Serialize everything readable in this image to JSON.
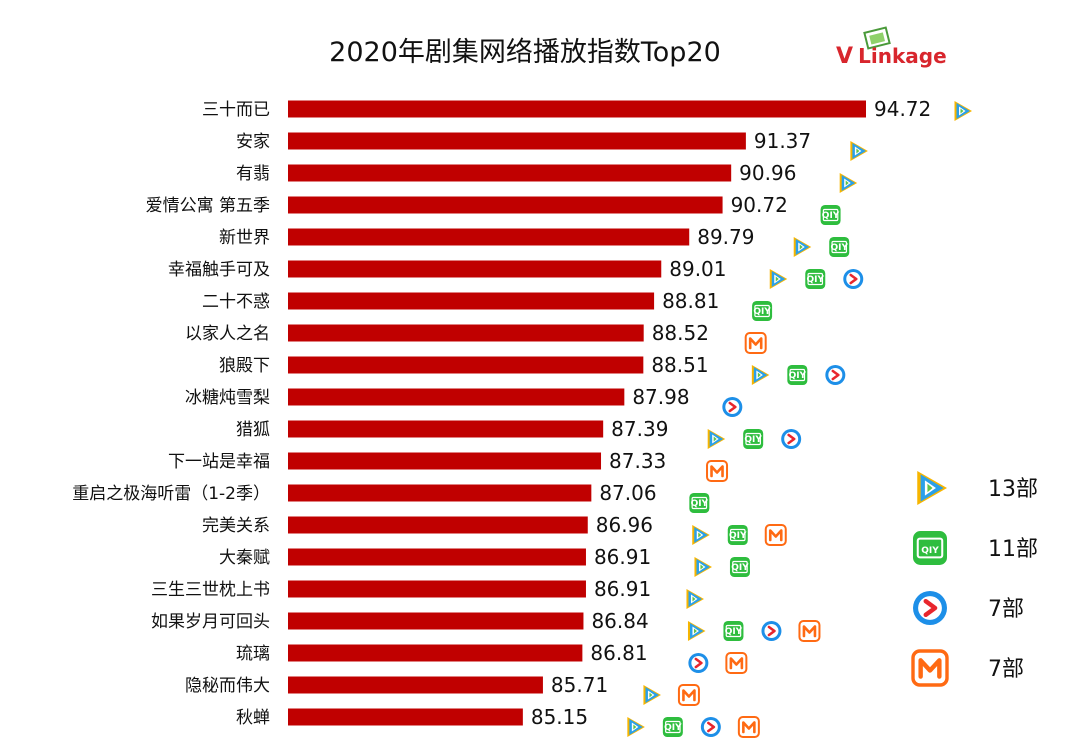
{
  "brand": {
    "logo_text": "VLinkage",
    "color": "#d8262d"
  },
  "colors": {
    "bar": "#c00000",
    "tencent": "#2aa0e8",
    "tencent_accent": "#f7b500",
    "tencent_inner": "#5ec24a",
    "iqiyi": "#2ebd3e",
    "youku": "#1d8fe8",
    "youku_accent": "#e8262d",
    "mgtv": "#ff6a13"
  },
  "platforms": {
    "tencent": "tencent-video-icon",
    "iqiyi": "iqiyi-icon",
    "youku": "youku-icon",
    "mgtv": "mgtv-icon"
  },
  "legend": [
    {
      "platform": "tencent",
      "count": "13部"
    },
    {
      "platform": "iqiyi",
      "count": "11部"
    },
    {
      "platform": "youku",
      "count": "7部"
    },
    {
      "platform": "mgtv",
      "count": "7部"
    }
  ],
  "chart_data": {
    "type": "bar",
    "orientation": "horizontal",
    "title": "2020年剧集网络播放指数Top20",
    "categories": [
      "三十而已",
      "安家",
      "有翡",
      "爱情公寓 第五季",
      "新世界",
      "幸福触手可及",
      "二十不惑",
      "以家人之名",
      "狼殿下",
      "冰糖炖雪梨",
      "猎狐",
      "下一站是幸福",
      "重启之极海听雷（1-2季）",
      "完美关系",
      "大秦赋",
      "三生三世枕上书",
      "如果岁月可回头",
      "琉璃",
      "隐秘而伟大",
      "秋蝉"
    ],
    "values": [
      94.72,
      91.37,
      90.96,
      90.72,
      89.79,
      89.01,
      88.81,
      88.52,
      88.51,
      87.98,
      87.39,
      87.33,
      87.06,
      86.96,
      86.91,
      86.91,
      86.84,
      86.81,
      85.71,
      85.15
    ],
    "value_labels": [
      "94.72",
      "91.37",
      "90.96",
      "90.72",
      "89.79",
      "89.01",
      "88.81",
      "88.52",
      "88.51",
      "87.98",
      "87.39",
      "87.33",
      "87.06",
      "86.96",
      "86.91",
      "86.91",
      "86.84",
      "86.81",
      "85.71",
      "85.15"
    ],
    "platforms": [
      [
        "tencent"
      ],
      [
        "tencent"
      ],
      [
        "tencent"
      ],
      [
        "iqiyi"
      ],
      [
        "tencent",
        "iqiyi"
      ],
      [
        "tencent",
        "iqiyi",
        "youku"
      ],
      [
        "iqiyi"
      ],
      [
        "mgtv"
      ],
      [
        "tencent",
        "iqiyi",
        "youku"
      ],
      [
        "youku"
      ],
      [
        "tencent",
        "iqiyi",
        "youku"
      ],
      [
        "mgtv"
      ],
      [
        "iqiyi"
      ],
      [
        "tencent",
        "iqiyi",
        "mgtv"
      ],
      [
        "tencent",
        "iqiyi"
      ],
      [
        "tencent"
      ],
      [
        "tencent",
        "iqiyi",
        "youku",
        "mgtv"
      ],
      [
        "youku",
        "mgtv"
      ],
      [
        "tencent",
        "mgtv"
      ],
      [
        "tencent",
        "iqiyi",
        "youku",
        "mgtv"
      ]
    ],
    "xlabel": "",
    "ylabel": "",
    "grid": false,
    "legend_position": "right"
  }
}
